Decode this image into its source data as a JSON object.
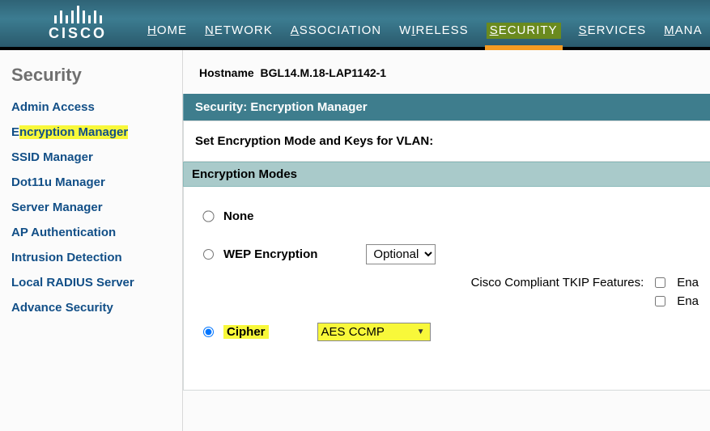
{
  "brand": "CISCO",
  "topnav": {
    "home": "HOME",
    "network": "NETWORK",
    "association": "ASSOCIATION",
    "wireless": "WIRELESS",
    "security": "SECURITY",
    "services": "SERVICES",
    "management": "MANA"
  },
  "sidebar": {
    "title": "Security",
    "items": {
      "admin": "Admin Access",
      "encmgr_prefix": "E",
      "encmgr_hl": "ncryption Manager",
      "ssid": "SSID Manager",
      "dot11u": "Dot11u Manager",
      "server": "Server Manager",
      "apauth": "AP Authentication",
      "ids": "Intrusion Detection",
      "radius": "Local RADIUS Server",
      "advance": "Advance Security"
    }
  },
  "hostname_label": "Hostname",
  "hostname_value": "BGL14.M.18-LAP1142-1",
  "panel": {
    "title": "Security: Encryption Manager",
    "subtitle": "Set Encryption Mode and Keys for VLAN:",
    "modes_title": "Encryption Modes",
    "none": "None",
    "wep": "WEP Encryption",
    "wep_select": "Optional",
    "tkip_label": "Cisco Compliant TKIP Features:",
    "ena1": "Ena",
    "ena2": "Ena",
    "cipher": "Cipher",
    "cipher_value": "AES CCMP"
  }
}
